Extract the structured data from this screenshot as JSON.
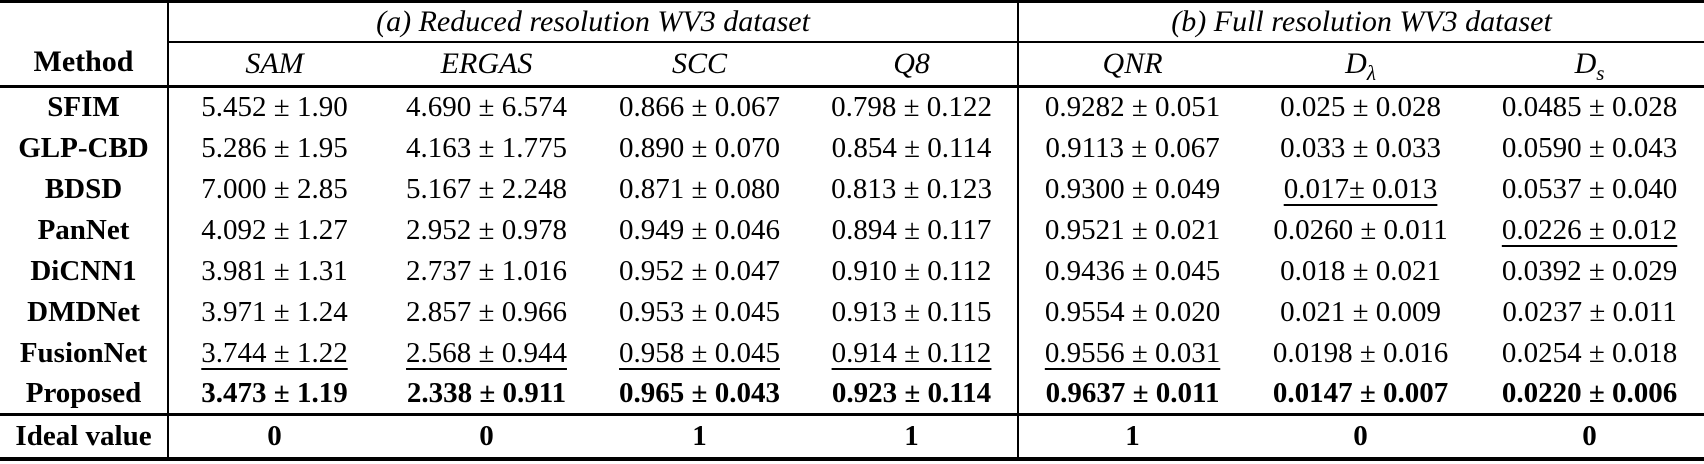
{
  "colors": {
    "background": "#ffffff",
    "text": "#000000",
    "rule": "#000000"
  },
  "table": {
    "method_header": "Method",
    "group_a": "(a) Reduced resolution WV3 dataset",
    "group_b": "(b) Full resolution WV3 dataset",
    "metrics": [
      {
        "key": "sam",
        "label": "SAM",
        "sub": ""
      },
      {
        "key": "ergas",
        "label": "ERGAS",
        "sub": ""
      },
      {
        "key": "scc",
        "label": "SCC",
        "sub": ""
      },
      {
        "key": "q8",
        "label": "Q8",
        "sub": ""
      },
      {
        "key": "qnr",
        "label": "QNR",
        "sub": ""
      },
      {
        "key": "d-lambda",
        "label": "D",
        "sub": "λ"
      },
      {
        "key": "d-s",
        "label": "D",
        "sub": "s"
      }
    ],
    "rows": [
      {
        "method": "SFIM",
        "values": [
          "5.452 ± 1.90",
          "4.690 ± 6.574",
          "0.866 ± 0.067",
          "0.798 ± 0.122",
          "0.9282 ± 0.051",
          "0.025 ± 0.028",
          "0.0485 ± 0.028"
        ],
        "bold": false,
        "underline": []
      },
      {
        "method": "GLP-CBD",
        "values": [
          "5.286 ± 1.95",
          "4.163 ± 1.775",
          "0.890 ± 0.070",
          "0.854 ± 0.114",
          "0.9113 ± 0.067",
          "0.033 ± 0.033",
          "0.0590 ± 0.043"
        ],
        "bold": false,
        "underline": []
      },
      {
        "method": "BDSD",
        "values": [
          "7.000 ± 2.85",
          "5.167 ± 2.248",
          "0.871 ± 0.080",
          "0.813 ± 0.123",
          "0.9300 ± 0.049",
          "0.017± 0.013",
          "0.0537 ± 0.040"
        ],
        "bold": false,
        "underline": [
          5
        ]
      },
      {
        "method": "PanNet",
        "values": [
          "4.092 ± 1.27",
          "2.952 ± 0.978",
          "0.949 ± 0.046",
          "0.894 ± 0.117",
          "0.9521 ± 0.021",
          "0.0260 ± 0.011",
          "0.0226 ± 0.012"
        ],
        "bold": false,
        "underline": [
          6
        ]
      },
      {
        "method": "DiCNN1",
        "values": [
          "3.981 ± 1.31",
          "2.737 ± 1.016",
          "0.952 ± 0.047",
          "0.910 ± 0.112",
          "0.9436 ± 0.045",
          "0.018 ± 0.021",
          "0.0392 ± 0.029"
        ],
        "bold": false,
        "underline": []
      },
      {
        "method": "DMDNet",
        "values": [
          "3.971 ± 1.24",
          "2.857 ± 0.966",
          "0.953 ± 0.045",
          "0.913 ± 0.115",
          "0.9554 ± 0.020",
          "0.021 ± 0.009",
          "0.0237 ± 0.011"
        ],
        "bold": false,
        "underline": []
      },
      {
        "method": "FusionNet",
        "values": [
          "3.744 ± 1.22",
          "2.568 ± 0.944",
          "0.958 ± 0.045",
          "0.914 ± 0.112",
          "0.9556 ± 0.031",
          "0.0198 ± 0.016",
          "0.0254 ± 0.018"
        ],
        "bold": false,
        "underline": [
          0,
          1,
          2,
          3,
          4
        ]
      },
      {
        "method": "Proposed",
        "values": [
          "3.473 ± 1.19",
          "2.338 ± 0.911",
          "0.965 ± 0.043",
          "0.923 ± 0.114",
          "0.9637 ± 0.011",
          "0.0147 ± 0.007",
          "0.0220 ± 0.006"
        ],
        "bold": true,
        "underline": []
      }
    ],
    "ideal": {
      "label": "Ideal value",
      "values": [
        "0",
        "0",
        "1",
        "1",
        "1",
        "0",
        "0"
      ]
    }
  }
}
